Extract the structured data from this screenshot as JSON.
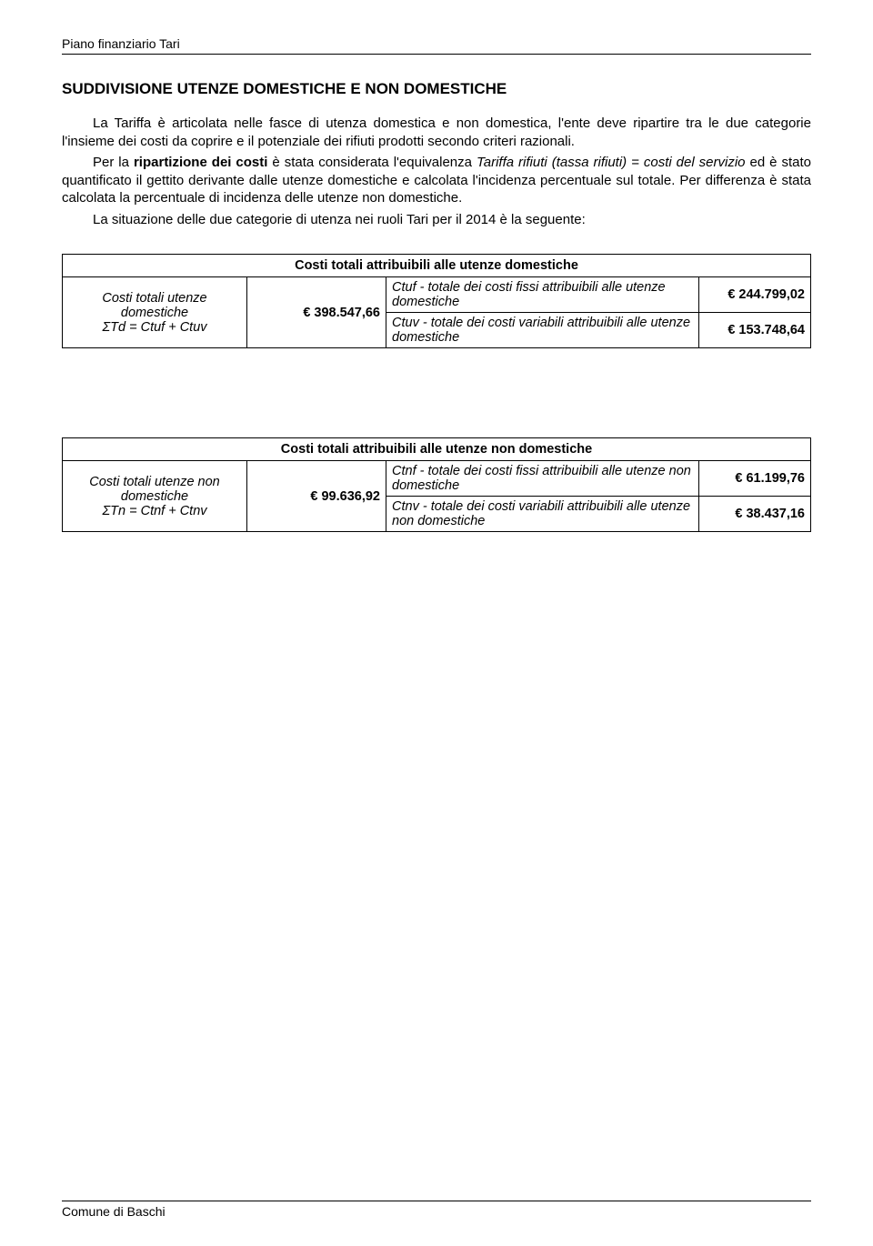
{
  "header": {
    "title": "Piano finanziario Tari"
  },
  "section_title": "SUDDIVISIONE UTENZE DOMESTICHE E NON DOMESTICHE",
  "p1_a": "La Tariffa è articolata nelle fasce di utenza domestica e non domestica, l'ente deve ripartire tra le due categorie l'insieme dei costi da coprire e il potenziale dei rifiuti prodotti secondo criteri razionali.",
  "p2_a": "Per la ",
  "p2_b": "ripartizione dei costi",
  "p2_c": " è stata considerata l'equivalenza ",
  "p2_d": "Tariffa rifiuti (tassa rifiuti)  = costi del servizio",
  "p2_e": " ed è stato quantificato il gettito derivante dalle utenze domestiche e calcolata l'incidenza percentuale sul totale. Per differenza è stata calcolata la percentuale di incidenza delle utenze non domestiche.",
  "p3": "La situazione delle due categorie di utenza nei ruoli Tari per il 2014 è la seguente:",
  "table_dom": {
    "header": "Costi totali attribuibili alle utenze domestiche",
    "left_line1": "Costi totali utenze",
    "left_line2": "domestiche",
    "left_line3": "ΣTd = Ctuf + Ctuv",
    "total": "€                398.547,66",
    "row1_desc": "Ctuf - totale dei costi fissi attribuibili alle utenze domestiche",
    "row1_val": "€           244.799,02",
    "row2_desc": "Ctuv - totale dei costi variabili attribuibili alle utenze domestiche",
    "row2_val": "€           153.748,64"
  },
  "table_nondom": {
    "header": "Costi totali attribuibili alle utenze non domestiche",
    "left_line1": "Costi totali utenze non",
    "left_line2": "domestiche",
    "left_line3": "ΣTn = Ctnf + Ctnv",
    "total": "€                  99.636,92",
    "row1_desc": "Ctnf - totale dei costi fissi attribuibili alle utenze non domestiche",
    "row1_val": "€             61.199,76",
    "row2_desc": "Ctnv - totale dei costi variabili attribuibili alle utenze non domestiche",
    "row2_val": "€             38.437,16"
  },
  "footer": {
    "text": "Comune di Baschi"
  }
}
